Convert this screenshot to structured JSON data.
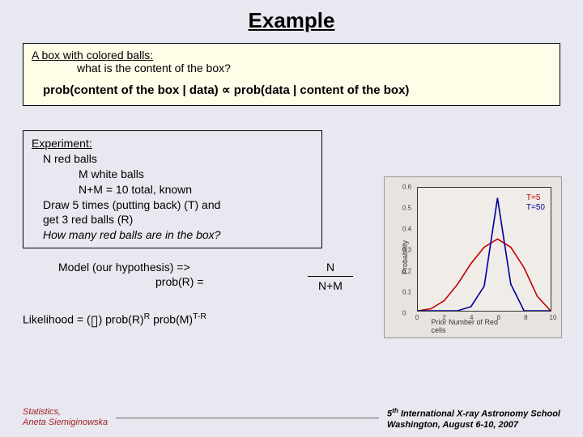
{
  "title": "Example",
  "topbox": {
    "line1": "A box with colored balls:",
    "line2": "what is the content of the box?",
    "formula": "prob(content of the box | data) ∝ prob(data | content of the box)"
  },
  "experiment": {
    "heading": "Experiment:",
    "l1": "N red balls",
    "l2": "M white balls",
    "l3": "N+M = 10 total, known",
    "l4": "Draw 5 times (putting back) (T) and",
    "l5": "get 3 red balls (R)",
    "l6": "How many red balls are in the box?"
  },
  "model": {
    "line1": "Model (our hypothesis) =>",
    "line2": "prob(R) =",
    "frac_num": "N",
    "frac_den": "N+M"
  },
  "likelihood": {
    "prefix": "Likelihood = (",
    "suffix_a": ") prob(R)",
    "exp1": "R",
    "suffix_b": " prob(M)",
    "exp2": "T-R"
  },
  "chart": {
    "type": "line",
    "xlabel": "Prior Number of Red cells",
    "ylabel": "Probability",
    "xlim": [
      0,
      10
    ],
    "ylim": [
      0,
      0.6
    ],
    "yticks": [
      0,
      0.1,
      0.2,
      0.3,
      0.4,
      0.5,
      0.6
    ],
    "xticks": [
      0,
      2,
      4,
      6,
      8,
      10
    ],
    "background_color": "#e8e3e0",
    "plot_bg": "#f0ece8",
    "border_color": "#333333",
    "legend": {
      "t5": "T=5",
      "t50": "T=50",
      "t5_color": "#c00000",
      "t50_color": "#0000a0"
    },
    "series": [
      {
        "name": "T=5",
        "color": "#c00000",
        "line_width": 1.2,
        "x": [
          0,
          1,
          2,
          3,
          4,
          5,
          6,
          7,
          8,
          9,
          10
        ],
        "y": [
          0.0,
          0.01,
          0.05,
          0.13,
          0.23,
          0.31,
          0.35,
          0.31,
          0.21,
          0.07,
          0.0
        ]
      },
      {
        "name": "T=50",
        "color": "#0000a0",
        "line_width": 1.2,
        "x": [
          0,
          1,
          2,
          3,
          4,
          5,
          6,
          7,
          8,
          9,
          10
        ],
        "y": [
          0.0,
          0.0,
          0.0,
          0.0,
          0.02,
          0.12,
          0.55,
          0.13,
          0.0,
          0.0,
          0.0
        ]
      }
    ]
  },
  "footer": {
    "left1": "Statistics,",
    "left2": "Aneta Siemiginowska",
    "right1": "5th International X-ray Astronomy School",
    "right1_pre": "5",
    "right1_sup": "th",
    "right1_post": " International X-ray Astronomy School",
    "right2": "Washington, August 6-10, 2007"
  }
}
